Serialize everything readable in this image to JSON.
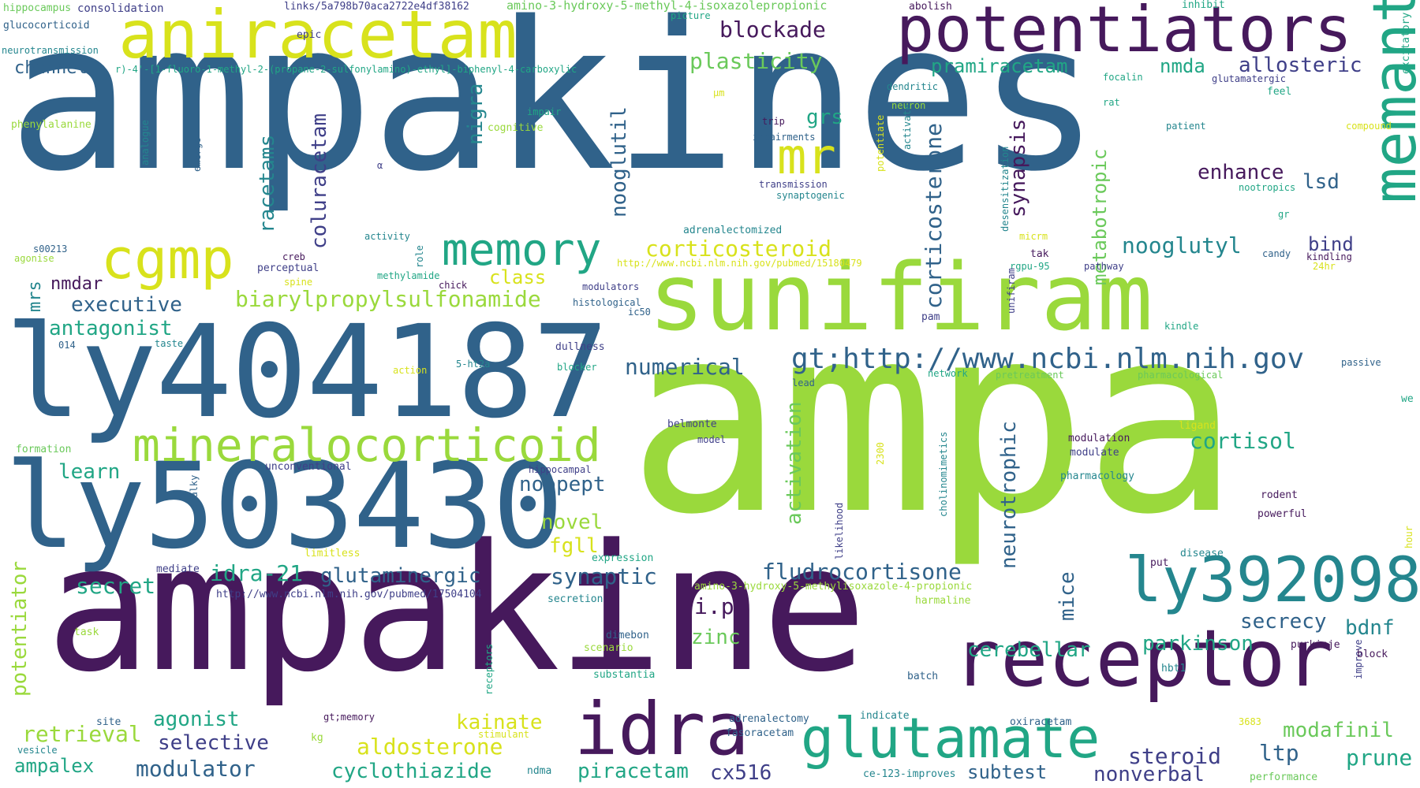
{
  "palette": {
    "dark_purple": "#46195c",
    "indigo": "#3f3f88",
    "steel_blue": "#30628a",
    "teal": "#24868e",
    "green_teal": "#21a685",
    "green": "#6ac95a",
    "lime": "#9ad93c",
    "yellow": "#d8e21c"
  },
  "words": [
    {
      "text": "ampakines",
      "color": "#30628a"
    },
    {
      "text": "ampa",
      "color": "#9ad93c"
    },
    {
      "text": "ampakine",
      "color": "#46195c"
    },
    {
      "text": "ly404187",
      "color": "#30628a"
    },
    {
      "text": "ly503430",
      "color": "#30628a"
    },
    {
      "text": "sunifiram",
      "color": "#9ad93c"
    },
    {
      "text": "aniracetam",
      "color": "#d8e21c"
    },
    {
      "text": "potentiators",
      "color": "#46195c"
    },
    {
      "text": "receptor",
      "color": "#46195c"
    },
    {
      "text": "ly392098",
      "color": "#24868e"
    },
    {
      "text": "memantine",
      "color": "#21a685"
    },
    {
      "text": "mineralocorticoid",
      "color": "#9ad93c"
    },
    {
      "text": "glutamate",
      "color": "#21a685"
    },
    {
      "text": "idra",
      "color": "#46195c"
    },
    {
      "text": "cgmp",
      "color": "#d8e21c"
    },
    {
      "text": "memory",
      "color": "#21a685"
    },
    {
      "text": "mr",
      "color": "#d8e21c"
    },
    {
      "text": "gt;http://www.ncbi.nlm.nih.gov",
      "color": "#30628a"
    },
    {
      "text": "corticosterone",
      "color": "#30628a"
    },
    {
      "text": "blockade",
      "color": "#46195c"
    },
    {
      "text": "plasticity",
      "color": "#6ac95a"
    },
    {
      "text": "pramiracetam",
      "color": "#21a685"
    },
    {
      "text": "nmda",
      "color": "#21a685"
    },
    {
      "text": "allosteric",
      "color": "#3f3f88"
    },
    {
      "text": "channel",
      "color": "#30628a"
    },
    {
      "text": "nooglutil",
      "color": "#30628a"
    },
    {
      "text": "nigra",
      "color": "#24868e"
    },
    {
      "text": "grs",
      "color": "#21a685"
    },
    {
      "text": "racetams",
      "color": "#24868e"
    },
    {
      "text": "coluracetam",
      "color": "#3f3f88"
    },
    {
      "text": "synapsis",
      "color": "#46195c"
    },
    {
      "text": "metabotropic",
      "color": "#6ac95a"
    },
    {
      "text": "enhance",
      "color": "#46195c"
    },
    {
      "text": "lsd",
      "color": "#30628a"
    },
    {
      "text": "corticosteroid",
      "color": "#d8e21c"
    },
    {
      "text": "nooglutyl",
      "color": "#24868e"
    },
    {
      "text": "bind",
      "color": "#3f3f88"
    },
    {
      "text": "class",
      "color": "#d8e21c"
    },
    {
      "text": "nmdar",
      "color": "#46195c"
    },
    {
      "text": "mrs",
      "color": "#24868e"
    },
    {
      "text": "biarylpropylsulfonamide",
      "color": "#9ad93c"
    },
    {
      "text": "executive",
      "color": "#30628a"
    },
    {
      "text": "antagonist",
      "color": "#21a685"
    },
    {
      "text": "numerical",
      "color": "#30628a"
    },
    {
      "text": "cortisol",
      "color": "#21a685"
    },
    {
      "text": "learn",
      "color": "#21a685"
    },
    {
      "text": "noopept",
      "color": "#30628a"
    },
    {
      "text": "novel",
      "color": "#9ad93c"
    },
    {
      "text": "fgll",
      "color": "#d8e21c"
    },
    {
      "text": "activation",
      "color": "#6ac95a"
    },
    {
      "text": "neurotrophic",
      "color": "#30628a"
    },
    {
      "text": "idra-21",
      "color": "#21a685"
    },
    {
      "text": "glutaminergic",
      "color": "#30628a"
    },
    {
      "text": "synaptic",
      "color": "#30628a"
    },
    {
      "text": "fludrocortisone",
      "color": "#30628a"
    },
    {
      "text": "secret",
      "color": "#21a685"
    },
    {
      "text": "potentiator",
      "color": "#9ad93c"
    },
    {
      "text": "i.p",
      "color": "#46195c"
    },
    {
      "text": "mice",
      "color": "#30628a"
    },
    {
      "text": "secrecy",
      "color": "#30628a"
    },
    {
      "text": "bdnf",
      "color": "#24868e"
    },
    {
      "text": "zinc",
      "color": "#6ac95a"
    },
    {
      "text": "cerebellar",
      "color": "#21a685"
    },
    {
      "text": "parkinson",
      "color": "#21a685"
    },
    {
      "text": "retrieval",
      "color": "#9ad93c"
    },
    {
      "text": "agonist",
      "color": "#21a685"
    },
    {
      "text": "kainate",
      "color": "#d8e21c"
    },
    {
      "text": "selective",
      "color": "#3f3f88"
    },
    {
      "text": "aldosterone",
      "color": "#d8e21c"
    },
    {
      "text": "modafinil",
      "color": "#6ac95a"
    },
    {
      "text": "ltp",
      "color": "#30628a"
    },
    {
      "text": "steroid",
      "color": "#3f3f88"
    },
    {
      "text": "prune",
      "color": "#21a685"
    },
    {
      "text": "ampalex",
      "color": "#21a685"
    },
    {
      "text": "modulator",
      "color": "#30628a"
    },
    {
      "text": "cyclothiazide",
      "color": "#21a685"
    },
    {
      "text": "piracetam",
      "color": "#21a685"
    },
    {
      "text": "cx516",
      "color": "#3f3f88"
    },
    {
      "text": "subtest",
      "color": "#30628a"
    },
    {
      "text": "nonverbal",
      "color": "#3f3f88"
    },
    {
      "text": "hippocampus",
      "color": "#6ac95a"
    },
    {
      "text": "consolidation",
      "color": "#3f3f88"
    },
    {
      "text": "links/5a798b70aca2722e4df38162",
      "color": "#3f3f88"
    },
    {
      "text": "amino-3-hydroxy-5-methyl-4-isoxazolepropionic",
      "color": "#6ac95a"
    },
    {
      "text": "abolish",
      "color": "#46195c"
    },
    {
      "text": "inhibit",
      "color": "#21a685"
    },
    {
      "text": "glucocorticoid",
      "color": "#30628a"
    },
    {
      "text": "picture",
      "color": "#21a685"
    },
    {
      "text": "excitatory",
      "color": "#21a685"
    },
    {
      "text": "epic",
      "color": "#3f3f88"
    },
    {
      "text": "neurotransmission",
      "color": "#24868e"
    },
    {
      "text": "r)-4'-[1-fluoro-1-methyl-2-(propane-2-sulfonylamino)-ethyl]-biphenyl-4-carboxylic",
      "color": "#21a685"
    },
    {
      "text": "focalin",
      "color": "#21a685"
    },
    {
      "text": "glutamatergic",
      "color": "#3f3f88"
    },
    {
      "text": "dendritic",
      "color": "#24868e"
    },
    {
      "text": "µm",
      "color": "#d8e21c"
    },
    {
      "text": "feel",
      "color": "#21a685"
    },
    {
      "text": "phenylalanine",
      "color": "#9ad93c"
    },
    {
      "text": "impair",
      "color": "#21a685"
    },
    {
      "text": "cognitive",
      "color": "#9ad93c"
    },
    {
      "text": "neuron",
      "color": "#9ad93c"
    },
    {
      "text": "rat",
      "color": "#21a685"
    },
    {
      "text": "patient",
      "color": "#24868e"
    },
    {
      "text": "compound",
      "color": "#d8e21c"
    },
    {
      "text": "trip",
      "color": "#46195c"
    },
    {
      "text": "impairments",
      "color": "#30628a"
    },
    {
      "text": "transmission",
      "color": "#3f3f88"
    },
    {
      "text": "synaptogenic",
      "color": "#24868e"
    },
    {
      "text": "nootropics",
      "color": "#21a685"
    },
    {
      "text": "α",
      "color": "#3f3f88"
    },
    {
      "text": "analogue",
      "color": "#24868e"
    },
    {
      "text": "emerge",
      "color": "#30628a"
    },
    {
      "text": "potentiate",
      "color": "#d8e21c"
    },
    {
      "text": "activate",
      "color": "#24868e"
    },
    {
      "text": "desensitization",
      "color": "#24868e"
    },
    {
      "text": "gr",
      "color": "#21a685"
    },
    {
      "text": "adrenalectomized",
      "color": "#24868e"
    },
    {
      "text": "micrm",
      "color": "#d8e21c"
    },
    {
      "text": "s00213",
      "color": "#30628a"
    },
    {
      "text": "agonise",
      "color": "#9ad93c"
    },
    {
      "text": "activity",
      "color": "#24868e"
    },
    {
      "text": "creb",
      "color": "#46195c"
    },
    {
      "text": "perceptual",
      "color": "#3f3f88"
    },
    {
      "text": "role",
      "color": "#24868e"
    },
    {
      "text": "http://www.ncbi.nlm.nih.gov/pubmed/15180479",
      "color": "#d8e21c"
    },
    {
      "text": "tak",
      "color": "#46195c"
    },
    {
      "text": "candy",
      "color": "#30628a"
    },
    {
      "text": "kindling",
      "color": "#46195c"
    },
    {
      "text": "24hr",
      "color": "#d8e21c"
    },
    {
      "text": "rgpu-95",
      "color": "#21a685"
    },
    {
      "text": "pathway",
      "color": "#3f3f88"
    },
    {
      "text": "spine",
      "color": "#d8e21c"
    },
    {
      "text": "chick",
      "color": "#46195c"
    },
    {
      "text": "methylamide",
      "color": "#21a685"
    },
    {
      "text": "modulators",
      "color": "#3f3f88"
    },
    {
      "text": "histological",
      "color": "#30628a"
    },
    {
      "text": "ic50",
      "color": "#30628a"
    },
    {
      "text": "unifiram",
      "color": "#3f3f88"
    },
    {
      "text": "pam",
      "color": "#3f3f88"
    },
    {
      "text": "kindle",
      "color": "#21a685"
    },
    {
      "text": "014",
      "color": "#30628a"
    },
    {
      "text": "taste",
      "color": "#24868e"
    },
    {
      "text": "dullness",
      "color": "#3f3f88"
    },
    {
      "text": "5-ht2a",
      "color": "#24868e"
    },
    {
      "text": "action",
      "color": "#d8e21c"
    },
    {
      "text": "blocker",
      "color": "#21a685"
    },
    {
      "text": "network",
      "color": "#21a685"
    },
    {
      "text": "pretreatment",
      "color": "#6ac95a"
    },
    {
      "text": "pharmacological",
      "color": "#6ac95a"
    },
    {
      "text": "passive",
      "color": "#30628a"
    },
    {
      "text": "lead",
      "color": "#30628a"
    },
    {
      "text": "we",
      "color": "#21a685"
    },
    {
      "text": "belmonte",
      "color": "#3f3f88"
    },
    {
      "text": "model",
      "color": "#3f3f88"
    },
    {
      "text": "ligand",
      "color": "#d8e21c"
    },
    {
      "text": "formation",
      "color": "#6ac95a"
    },
    {
      "text": "modulation",
      "color": "#46195c"
    },
    {
      "text": "modulate",
      "color": "#3f3f88"
    },
    {
      "text": "unconventional",
      "color": "#3f3f88"
    },
    {
      "text": "hippocampal",
      "color": "#3f3f88"
    },
    {
      "text": "2300",
      "color": "#d8e21c"
    },
    {
      "text": "cholinomimetics",
      "color": "#24868e"
    },
    {
      "text": "pharmacology",
      "color": "#24868e"
    },
    {
      "text": "rodent",
      "color": "#46195c"
    },
    {
      "text": "chalky",
      "color": "#30628a"
    },
    {
      "text": "likelihood",
      "color": "#3f3f88"
    },
    {
      "text": "powerful",
      "color": "#46195c"
    },
    {
      "text": "hour",
      "color": "#d8e21c"
    },
    {
      "text": "limitless",
      "color": "#d8e21c"
    },
    {
      "text": "expression",
      "color": "#21a685"
    },
    {
      "text": "disease",
      "color": "#24868e"
    },
    {
      "text": "mediate",
      "color": "#3f3f88"
    },
    {
      "text": "put",
      "color": "#46195c"
    },
    {
      "text": "http://www.ncbi.nlm.nih.gov/pubmed/17504104",
      "color": "#3f3f88"
    },
    {
      "text": "amino-3-hydroxy-5-methylisoxazole-4-propionic",
      "color": "#9ad93c"
    },
    {
      "text": "secretion",
      "color": "#24868e"
    },
    {
      "text": "harmaline",
      "color": "#9ad93c"
    },
    {
      "text": "task",
      "color": "#9ad93c"
    },
    {
      "text": "dimebon",
      "color": "#30628a"
    },
    {
      "text": "scenario",
      "color": "#9ad93c"
    },
    {
      "text": "purkinje",
      "color": "#46195c"
    },
    {
      "text": "improve",
      "color": "#3f3f88"
    },
    {
      "text": "block",
      "color": "#46195c"
    },
    {
      "text": "substantia",
      "color": "#21a685"
    },
    {
      "text": "receptors",
      "color": "#21a685"
    },
    {
      "text": "batch",
      "color": "#30628a"
    },
    {
      "text": "hbt1",
      "color": "#24868e"
    },
    {
      "text": "site",
      "color": "#30628a"
    },
    {
      "text": "adrenalectomy",
      "color": "#30628a"
    },
    {
      "text": "indicate",
      "color": "#24868e"
    },
    {
      "text": "gt;memory",
      "color": "#46195c"
    },
    {
      "text": "oxiracetam",
      "color": "#30628a"
    },
    {
      "text": "3683",
      "color": "#d8e21c"
    },
    {
      "text": "vesicle",
      "color": "#24868e"
    },
    {
      "text": "kg",
      "color": "#9ad93c"
    },
    {
      "text": "stimulant",
      "color": "#d8e21c"
    },
    {
      "text": "fasoracetam",
      "color": "#30628a"
    },
    {
      "text": "ndma",
      "color": "#24868e"
    },
    {
      "text": "ce-123-improves",
      "color": "#24868e"
    },
    {
      "text": "performance",
      "color": "#6ac95a"
    }
  ]
}
